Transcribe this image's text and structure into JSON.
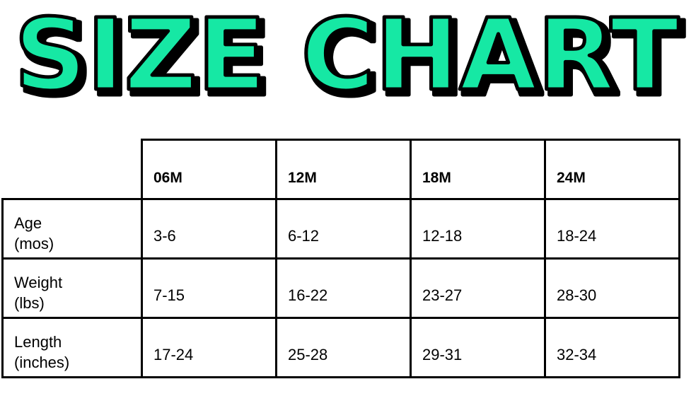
{
  "title": "SIZE CHART",
  "title_color": "#14E8A4",
  "table": {
    "columns": [
      "06M",
      "12M",
      "18M",
      "24M"
    ],
    "rows": [
      {
        "label_line1": "Age",
        "label_line2": "(mos)",
        "values": [
          "3-6",
          "6-12",
          "12-18",
          "18-24"
        ]
      },
      {
        "label_line1": "Weight",
        "label_line2": "(lbs)",
        "values": [
          "7-15",
          "16-22",
          "23-27",
          "28-30"
        ]
      },
      {
        "label_line1": "Length",
        "label_line2": "(inches)",
        "values": [
          "17-24",
          "25-28",
          "29-31",
          "32-34"
        ]
      }
    ]
  }
}
